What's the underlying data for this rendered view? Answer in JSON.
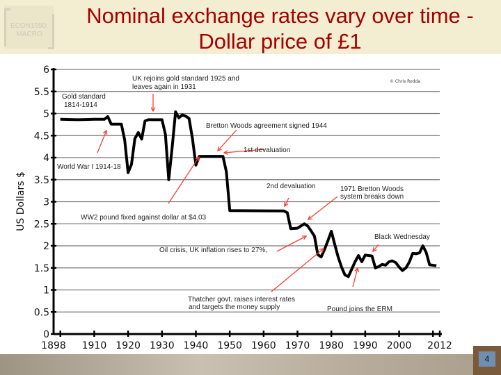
{
  "slide": {
    "title_line1": "Nominal exchange rates vary over time -",
    "title_line2": "Dollar price of £1",
    "logo_text_1": "ECON1050:",
    "logo_text_2": "MACRO",
    "page_number": "4"
  },
  "chart_data": {
    "type": "line",
    "title": "",
    "xlabel": "",
    "ylabel": "US Dollars $",
    "xlim": [
      1898,
      2012
    ],
    "ylim": [
      0,
      6
    ],
    "grid": true,
    "x_tick_labels": [
      "1898",
      "1910",
      "1920",
      "1930",
      "1940",
      "1950",
      "1960",
      "1970",
      "1980",
      "1990",
      "2000",
      "2012"
    ],
    "y_tick_labels": [
      "0",
      "0.5",
      "1",
      "1.5",
      "2",
      "2.5",
      "3",
      "3.5",
      "4",
      "4.5",
      "5",
      "5.5",
      "6"
    ],
    "credit": "© Chris Rodda",
    "series": [
      {
        "color": "#000000",
        "x": [
          1900,
          1905,
          1910,
          1913,
          1914,
          1915,
          1918,
          1919,
          1920,
          1921,
          1922,
          1923,
          1924,
          1925,
          1926,
          1930,
          1931,
          1932,
          1933,
          1934,
          1935,
          1936,
          1937,
          1938,
          1939,
          1940,
          1941,
          1948,
          1949,
          1950,
          1966,
          1967,
          1968,
          1970,
          1972,
          1973,
          1974,
          1975,
          1976,
          1977,
          1978,
          1979,
          1980,
          1981,
          1982,
          1983,
          1984,
          1985,
          1986,
          1987,
          1988,
          1989,
          1990,
          1992,
          1993,
          1994,
          1995,
          1996,
          1997,
          1998,
          1999,
          2000,
          2001,
          2002,
          2003,
          2004,
          2005,
          2006,
          2007,
          2008,
          2009,
          2011
        ],
        "y": [
          4.87,
          4.86,
          4.87,
          4.87,
          4.93,
          4.76,
          4.76,
          4.4,
          3.66,
          3.85,
          4.43,
          4.57,
          4.42,
          4.83,
          4.86,
          4.86,
          4.53,
          3.5,
          4.23,
          5.04,
          4.9,
          4.97,
          4.94,
          4.89,
          4.43,
          3.83,
          4.03,
          4.03,
          3.68,
          2.8,
          2.79,
          2.75,
          2.39,
          2.4,
          2.5,
          2.45,
          2.34,
          2.22,
          1.8,
          1.75,
          1.92,
          2.12,
          2.33,
          2.03,
          1.75,
          1.52,
          1.34,
          1.3,
          1.47,
          1.64,
          1.78,
          1.64,
          1.79,
          1.77,
          1.5,
          1.53,
          1.58,
          1.56,
          1.64,
          1.66,
          1.62,
          1.52,
          1.44,
          1.5,
          1.63,
          1.83,
          1.82,
          1.84,
          2.0,
          1.85,
          1.57,
          1.55
        ]
      }
    ],
    "annotations": {
      "gold_standard_1": "Gold standard",
      "gold_standard_2": "1814-1914",
      "uk_rejoins_1": "UK rejoins gold standard 1925 and",
      "uk_rejoins_2": "leaves again in 1931",
      "ww1": "World War I 1914-18",
      "bretton_woods": "Bretton Woods agreement signed 1944",
      "first_devaluation": "1st devaluation",
      "ww2": "WW2 pound fixed against dollar at $4.03",
      "second_devaluation": "2nd devaluation",
      "bw_breaks_1": "1971 Bretton Woods",
      "bw_breaks_2": "system breaks down",
      "oil_crisis": "Oil crisis, UK inflation rises to 27%,",
      "black_wednesday": "Black Wednesday",
      "thatcher_1": "Thatcher govt. raises interest rates",
      "thatcher_2": "and targets the money supply",
      "erm": "Pound joins the ERM"
    },
    "arrow_color": "#ff3b30"
  }
}
